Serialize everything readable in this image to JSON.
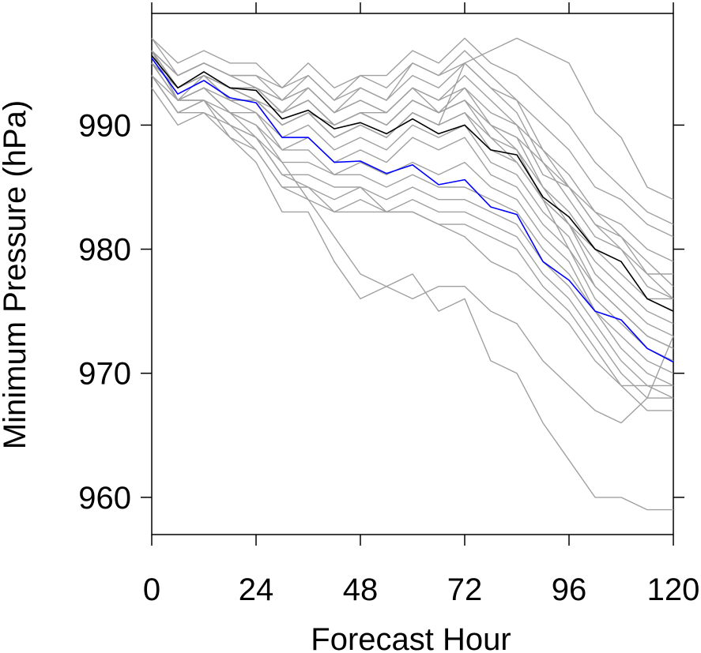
{
  "chart_data": {
    "type": "line",
    "xlabel": "Forecast Hour",
    "ylabel": "Minimum Pressure (hPa)",
    "xlim": [
      0,
      120
    ],
    "ylim": [
      957,
      999
    ],
    "xticks": [
      0,
      24,
      48,
      72,
      96,
      120
    ],
    "yticks": [
      960,
      970,
      980,
      990
    ],
    "x": [
      0,
      6,
      12,
      18,
      24,
      30,
      36,
      42,
      48,
      54,
      60,
      66,
      72,
      78,
      84,
      90,
      96,
      102,
      108,
      114,
      120
    ],
    "colors": {
      "ensemble": "#a0a0a0",
      "highlight_black": "#000000",
      "highlight_blue": "#0000ff"
    },
    "series": [
      {
        "role": "ensemble",
        "values": [
          996,
          994,
          995,
          994,
          994,
          992,
          993,
          991,
          992,
          991,
          993,
          992,
          993,
          990,
          989,
          985,
          983,
          980,
          979,
          976,
          975
        ]
      },
      {
        "role": "ensemble",
        "values": [
          995,
          993,
          994,
          993,
          993,
          991,
          992,
          990,
          991,
          990,
          992,
          991,
          992,
          989,
          987,
          984,
          982,
          979,
          977,
          975,
          974
        ]
      },
      {
        "role": "ensemble",
        "values": [
          997,
          995,
          996,
          995,
          995,
          993,
          995,
          993,
          994,
          993,
          995,
          994,
          996,
          994,
          992,
          988,
          985,
          983,
          981,
          979,
          977
        ]
      },
      {
        "role": "ensemble",
        "values": [
          996,
          994,
          995,
          994,
          993,
          992,
          994,
          992,
          993,
          992,
          994,
          993,
          995,
          993,
          991,
          987,
          984,
          981,
          980,
          977,
          976
        ]
      },
      {
        "role": "ensemble",
        "values": [
          995,
          993,
          994,
          993,
          992,
          991,
          993,
          991,
          992,
          991,
          993,
          992,
          994,
          992,
          990,
          986,
          985,
          982,
          980,
          978,
          976
        ]
      },
      {
        "role": "ensemble",
        "values": [
          996,
          992,
          994,
          992,
          992,
          990,
          991,
          989,
          990,
          989,
          991,
          990,
          991,
          988,
          987,
          984,
          982,
          978,
          976,
          974,
          973
        ]
      },
      {
        "role": "ensemble",
        "values": [
          996,
          992,
          993,
          992,
          991,
          989,
          990,
          988,
          989,
          988,
          990,
          989,
          990,
          987,
          986,
          983,
          981,
          977,
          975,
          973,
          972
        ]
      },
      {
        "role": "ensemble",
        "values": [
          995,
          992,
          993,
          991,
          991,
          988,
          989,
          987,
          988,
          987,
          989,
          988,
          989,
          986,
          985,
          982,
          980,
          976,
          974,
          972,
          971
        ]
      },
      {
        "role": "ensemble",
        "values": [
          995,
          992,
          993,
          991,
          990,
          988,
          988,
          986,
          987,
          986,
          987,
          986,
          987,
          985,
          984,
          981,
          979,
          975,
          973,
          971,
          970
        ]
      },
      {
        "role": "ensemble",
        "values": [
          994,
          992,
          992,
          991,
          990,
          987,
          987,
          986,
          986,
          985,
          986,
          985,
          985,
          984,
          983,
          980,
          978,
          975,
          972,
          970,
          969
        ]
      },
      {
        "role": "ensemble",
        "values": [
          995,
          992,
          992,
          990,
          989,
          986,
          986,
          985,
          985,
          984,
          985,
          984,
          984,
          983,
          982,
          979,
          977,
          974,
          971,
          969,
          968
        ]
      },
      {
        "role": "ensemble",
        "values": [
          994,
          991,
          992,
          990,
          989,
          986,
          985,
          984,
          985,
          983,
          984,
          983,
          983,
          982,
          981,
          978,
          976,
          973,
          970,
          968,
          968
        ]
      },
      {
        "role": "ensemble",
        "values": [
          994,
          991,
          991,
          990,
          988,
          985,
          985,
          983,
          984,
          983,
          983,
          982,
          982,
          981,
          980,
          977,
          975,
          972,
          969,
          967,
          967
        ]
      },
      {
        "role": "ensemble",
        "values": [
          993,
          990,
          991,
          989,
          988,
          985,
          984,
          983,
          983,
          983,
          983,
          982,
          981,
          979,
          978,
          976,
          974,
          971,
          969,
          969,
          969
        ]
      },
      {
        "role": "ensemble",
        "values": [
          994,
          991,
          992,
          989,
          987,
          983,
          983,
          979,
          976,
          977,
          978,
          975,
          976,
          971,
          970,
          966,
          963,
          960,
          960,
          959,
          959
        ]
      },
      {
        "role": "ensemble",
        "values": [
          995,
          992,
          993,
          991,
          989,
          987,
          984,
          981,
          978,
          977,
          976,
          977,
          977,
          975,
          974,
          971,
          969,
          967,
          966,
          968,
          973
        ]
      },
      {
        "role": "ensemble",
        "values": [
          996,
          993,
          994,
          993,
          992,
          990,
          991,
          989,
          990,
          989,
          991,
          990,
          995,
          996,
          997,
          996,
          995,
          991,
          989,
          985,
          984
        ]
      },
      {
        "role": "ensemble",
        "values": [
          997,
          994,
          995,
          994,
          994,
          993,
          994,
          992,
          994,
          994,
          996,
          995,
          997,
          995,
          994,
          992,
          990,
          987,
          985,
          983,
          982
        ]
      },
      {
        "role": "ensemble",
        "values": [
          996,
          993,
          994,
          993,
          993,
          992,
          993,
          991,
          993,
          992,
          995,
          994,
          995,
          993,
          992,
          990,
          988,
          985,
          984,
          982,
          981
        ]
      },
      {
        "role": "ensemble",
        "values": [
          996,
          993,
          994,
          993,
          993,
          991,
          992,
          990,
          991,
          991,
          993,
          991,
          993,
          991,
          990,
          988,
          986,
          983,
          982,
          980,
          979
        ]
      },
      {
        "role": "ensemble",
        "values": [
          995,
          993,
          994,
          992,
          992,
          990,
          991,
          990,
          991,
          990,
          992,
          991,
          992,
          990,
          989,
          987,
          985,
          982,
          981,
          978,
          978
        ]
      },
      {
        "role": "ensemble",
        "values": [
          995,
          993,
          994,
          993,
          992,
          990,
          991,
          989,
          990,
          989,
          991,
          990,
          991,
          989,
          988,
          985,
          982,
          980,
          978,
          976,
          976
        ]
      },
      {
        "role": "ensemble",
        "values": [
          996,
          994,
          995,
          994,
          993,
          991,
          992,
          990,
          991,
          990,
          992,
          991,
          992,
          990,
          988,
          984,
          980,
          977,
          975,
          973,
          972
        ]
      },
      {
        "role": "highlight_black",
        "values": [
          995.6,
          993,
          994.3,
          993,
          992.8,
          990.5,
          991.2,
          989.7,
          990.2,
          989.3,
          990.5,
          989.3,
          990,
          988,
          987.6,
          984.2,
          982.6,
          980,
          979,
          976,
          975
        ]
      },
      {
        "role": "highlight_blue",
        "values": [
          995.4,
          992.5,
          993.6,
          992.2,
          991.8,
          989,
          989,
          987,
          987.1,
          986.1,
          986.8,
          985.2,
          985.6,
          983.4,
          982.8,
          979,
          977.5,
          975,
          974.3,
          972,
          970.9
        ]
      }
    ]
  }
}
